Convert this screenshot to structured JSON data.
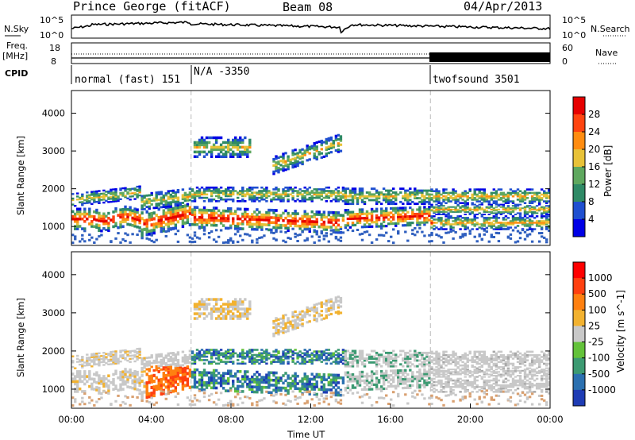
{
  "header": {
    "station": "Prince George (fitACF)",
    "beam": "Beam 08",
    "date": "04/Apr/2013"
  },
  "noise_panel": {
    "left_label": "N.Sky",
    "right_label": "N.Search",
    "left_ticks": [
      "10^5",
      "10^0"
    ],
    "right_ticks": [
      "10^5",
      "10^0"
    ]
  },
  "freq_panel": {
    "left_label": "Freq.",
    "left_unit": "[MHz]",
    "right_label": "Nave",
    "left_ticks": [
      "18",
      "8"
    ],
    "right_ticks": [
      "60",
      "0"
    ]
  },
  "cpid": {
    "label": "CPID",
    "segments": [
      {
        "text": "normal (fast) 151",
        "start_ut": 0
      },
      {
        "text": "N/A -3350",
        "start_ut": 6
      },
      {
        "text": "twofsound 3501",
        "start_ut": 18
      }
    ]
  },
  "chart_data": [
    {
      "type": "heatmap",
      "title": "Power",
      "quantity": "Power",
      "xlabel": "",
      "ylabel": "Slant Range [km]",
      "y_ticks": [
        "1000",
        "2000",
        "3000",
        "4000"
      ],
      "ylim": [
        500,
        4600
      ],
      "xlim_hours": [
        0,
        24
      ],
      "colorbar_label": "Power [dB]",
      "colorbar_ticks": [
        "28",
        "24",
        "20",
        "16",
        "12",
        "8",
        "4"
      ],
      "colorbar_colors": [
        "#0000e6",
        "#1f4fd0",
        "#2f8a66",
        "#5fa85f",
        "#e8c238",
        "#ff8c10",
        "#ff4410",
        "#e60000"
      ]
    },
    {
      "type": "heatmap",
      "title": "Velocity",
      "quantity": "Velocity",
      "xlabel": "Time UT",
      "ylabel": "Slant Range [km]",
      "y_ticks": [
        "1000",
        "2000",
        "3000",
        "4000"
      ],
      "ylim": [
        500,
        4600
      ],
      "x_ticks": [
        "00:00",
        "04:00",
        "08:00",
        "12:00",
        "16:00",
        "20:00",
        "00:00"
      ],
      "xlim_hours": [
        0,
        24
      ],
      "colorbar_label": "Velocity [m s^-1]",
      "colorbar_ticks": [
        "1000",
        "500",
        "100",
        "25",
        "-25",
        "-100",
        "-500",
        "-1000"
      ],
      "colorbar_colors": [
        "#1e3cb4",
        "#2b70b0",
        "#3c9a72",
        "#63c23a",
        "#c8c8c8",
        "#f2b230",
        "#ff8010",
        "#ff4010",
        "#ff0000"
      ]
    }
  ]
}
